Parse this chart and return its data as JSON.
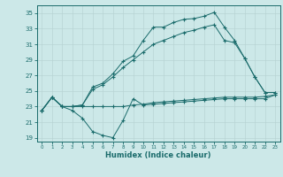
{
  "title": "",
  "xlabel": "Humidex (Indice chaleur)",
  "bg_color": "#cce8e8",
  "grid_color": "#b8d4d4",
  "line_color": "#1a6b6b",
  "xlim": [
    -0.5,
    23.5
  ],
  "ylim": [
    18.5,
    36.0
  ],
  "yticks": [
    19,
    21,
    23,
    25,
    27,
    29,
    31,
    33,
    35
  ],
  "xticks": [
    0,
    1,
    2,
    3,
    4,
    5,
    6,
    7,
    8,
    9,
    10,
    11,
    12,
    13,
    14,
    15,
    16,
    17,
    18,
    19,
    20,
    21,
    22,
    23
  ],
  "line_max": {
    "x": [
      0,
      1,
      2,
      3,
      4,
      5,
      6,
      7,
      8,
      9,
      10,
      11,
      12,
      13,
      14,
      15,
      16,
      17,
      18,
      19,
      20,
      21,
      22,
      23
    ],
    "y": [
      22.5,
      24.2,
      23.0,
      23.0,
      23.2,
      25.5,
      26.0,
      27.2,
      28.8,
      29.5,
      31.5,
      33.2,
      33.2,
      33.8,
      34.2,
      34.3,
      34.6,
      35.1,
      33.2,
      31.5,
      29.2,
      26.8,
      24.8,
      24.8
    ]
  },
  "line_upper_mid": {
    "x": [
      0,
      1,
      2,
      3,
      4,
      5,
      6,
      7,
      8,
      9,
      10,
      11,
      12,
      13,
      14,
      15,
      16,
      17,
      18,
      19,
      20,
      21,
      22,
      23
    ],
    "y": [
      22.5,
      24.2,
      23.0,
      23.0,
      23.2,
      25.2,
      25.8,
      26.8,
      28.0,
      29.0,
      30.0,
      31.0,
      31.5,
      32.0,
      32.5,
      32.8,
      33.2,
      33.5,
      31.5,
      31.2,
      29.2,
      26.8,
      24.8,
      24.8
    ]
  },
  "line_flat": {
    "x": [
      0,
      1,
      2,
      3,
      4,
      5,
      6,
      7,
      8,
      9,
      10,
      11,
      12,
      13,
      14,
      15,
      16,
      17,
      18,
      19,
      20,
      21,
      22,
      23
    ],
    "y": [
      22.5,
      24.2,
      23.0,
      23.0,
      23.0,
      23.0,
      23.0,
      23.0,
      23.0,
      23.2,
      23.3,
      23.5,
      23.6,
      23.7,
      23.8,
      23.9,
      24.0,
      24.1,
      24.2,
      24.2,
      24.2,
      24.2,
      24.3,
      24.5
    ]
  },
  "line_min": {
    "x": [
      0,
      1,
      2,
      3,
      4,
      5,
      6,
      7,
      8,
      9,
      10,
      11,
      12,
      13,
      14,
      15,
      16,
      17,
      18,
      19,
      20,
      21,
      22,
      23
    ],
    "y": [
      22.5,
      24.2,
      23.0,
      22.5,
      21.5,
      19.8,
      19.3,
      19.0,
      21.2,
      24.0,
      23.2,
      23.3,
      23.4,
      23.5,
      23.6,
      23.7,
      23.8,
      23.9,
      24.0,
      24.0,
      24.0,
      24.0,
      24.0,
      24.5
    ]
  }
}
